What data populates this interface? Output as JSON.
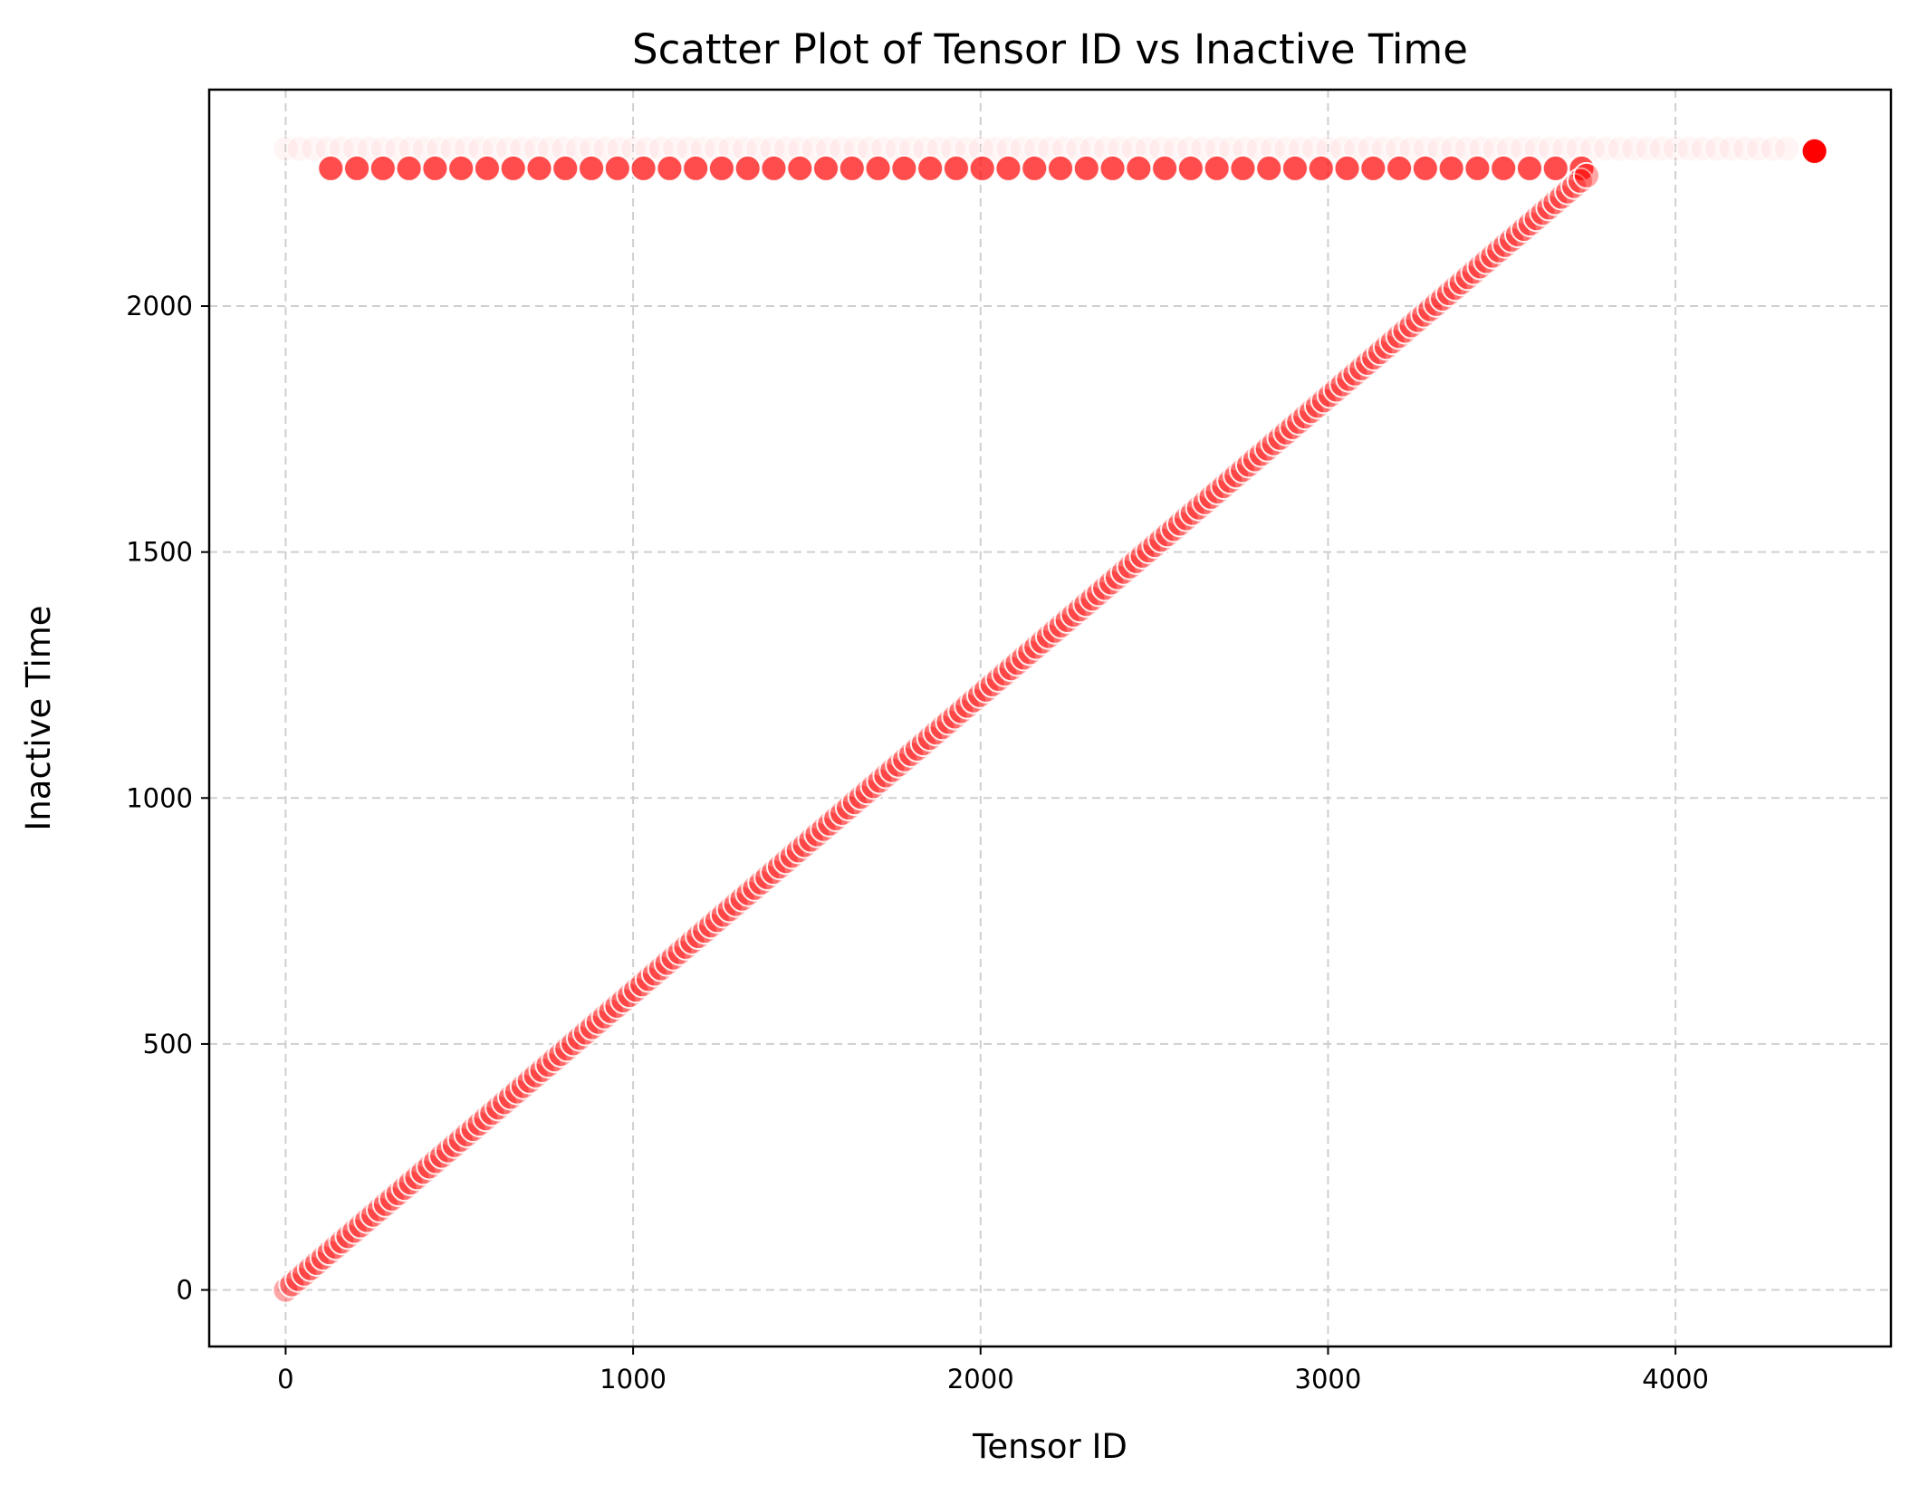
{
  "chart_data": {
    "type": "scatter",
    "title": "Scatter Plot of Tensor ID vs Inactive Time",
    "xlabel": "Tensor ID",
    "ylabel": "Inactive Time",
    "xlim": [
      -220,
      4620
    ],
    "ylim": [
      -115,
      2440
    ],
    "xticks": [
      0,
      1000,
      2000,
      3000,
      4000
    ],
    "yticks": [
      0,
      500,
      1000,
      1500,
      2000
    ],
    "grid": true,
    "legend": "none",
    "marker_color": "#ff0000",
    "marker_edge_color": "#ffffff",
    "series": [
      {
        "description_of_pattern": "diagonal: inactive time rises linearly with tensor id",
        "x_start": 0,
        "x_end": 3760,
        "x_step": 18,
        "y_start": 0,
        "y_end": 2275
      },
      {
        "description_of_pattern": "plateau row near top",
        "x_start": 130,
        "x_end": 3760,
        "x_step": 75,
        "y": 2280
      },
      {
        "description_of_pattern": "faint row at top",
        "x_start": 0,
        "x_end": 4330,
        "x_step": 40,
        "y": 2320
      },
      {
        "description_of_pattern": "outlier",
        "points": [
          [
            4400,
            2315
          ]
        ]
      }
    ]
  }
}
